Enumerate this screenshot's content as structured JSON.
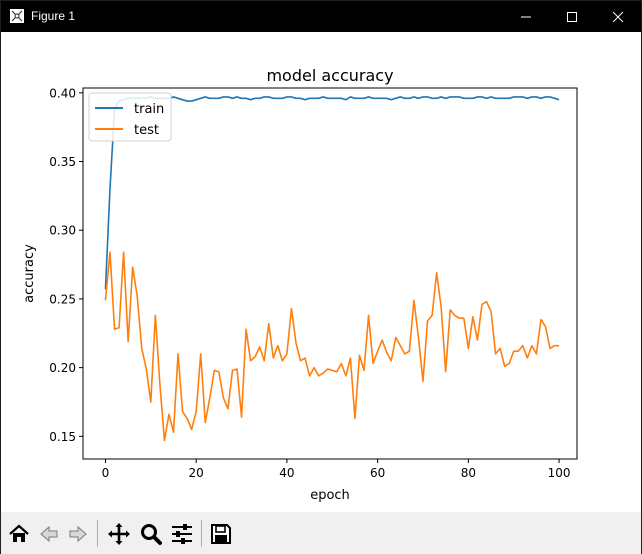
{
  "window": {
    "title": "Figure 1",
    "colors": {
      "titlebar": "#000000",
      "toolbar": "#f0f0f0"
    }
  },
  "toolbar": {
    "buttons": [
      {
        "name": "home-button",
        "icon": "home-icon"
      },
      {
        "name": "back-button",
        "icon": "back-arrow-icon"
      },
      {
        "name": "forward-button",
        "icon": "forward-arrow-icon"
      },
      {
        "name": "pan-button",
        "icon": "move-icon"
      },
      {
        "name": "zoom-button",
        "icon": "magnifier-icon"
      },
      {
        "name": "configure-subplots-button",
        "icon": "sliders-icon"
      },
      {
        "name": "save-button",
        "icon": "floppy-disk-icon"
      }
    ]
  },
  "chart_data": {
    "type": "line",
    "title": "model accuracy",
    "xlabel": "epoch",
    "ylabel": "accuracy",
    "xlim": [
      -4.95,
      103.95
    ],
    "ylim": [
      0.1335,
      0.4035
    ],
    "xticks": [
      0,
      20,
      40,
      60,
      80,
      100
    ],
    "xtick_labels": [
      "0",
      "20",
      "40",
      "60",
      "80",
      "100"
    ],
    "yticks": [
      0.15,
      0.2,
      0.25,
      0.3,
      0.35,
      0.4
    ],
    "ytick_labels": [
      "0.15",
      "0.20",
      "0.25",
      "0.30",
      "0.35",
      "0.40"
    ],
    "grid": false,
    "legend": {
      "placement": "top-left"
    },
    "series": [
      {
        "name": "train",
        "color": "#1f77b4",
        "values": [
          0.257,
          0.33,
          0.388,
          0.394,
          0.395,
          0.396,
          0.396,
          0.396,
          0.396,
          0.396,
          0.397,
          0.396,
          0.396,
          0.396,
          0.396,
          0.397,
          0.396,
          0.395,
          0.394,
          0.394,
          0.395,
          0.396,
          0.397,
          0.396,
          0.396,
          0.396,
          0.397,
          0.397,
          0.396,
          0.397,
          0.396,
          0.396,
          0.395,
          0.396,
          0.396,
          0.397,
          0.397,
          0.396,
          0.396,
          0.396,
          0.397,
          0.397,
          0.396,
          0.396,
          0.395,
          0.396,
          0.396,
          0.396,
          0.397,
          0.396,
          0.396,
          0.396,
          0.396,
          0.395,
          0.397,
          0.396,
          0.396,
          0.396,
          0.397,
          0.396,
          0.396,
          0.396,
          0.396,
          0.395,
          0.396,
          0.397,
          0.396,
          0.396,
          0.397,
          0.396,
          0.397,
          0.397,
          0.396,
          0.396,
          0.397,
          0.396,
          0.397,
          0.397,
          0.397,
          0.396,
          0.396,
          0.396,
          0.397,
          0.397,
          0.396,
          0.397,
          0.396,
          0.396,
          0.396,
          0.396,
          0.397,
          0.397,
          0.397,
          0.396,
          0.397,
          0.397,
          0.396,
          0.397,
          0.397,
          0.396,
          0.395
        ]
      },
      {
        "name": "test",
        "color": "#ff7f0e",
        "values": [
          0.249,
          0.284,
          0.228,
          0.229,
          0.284,
          0.219,
          0.273,
          0.252,
          0.214,
          0.199,
          0.175,
          0.238,
          0.188,
          0.147,
          0.166,
          0.153,
          0.21,
          0.168,
          0.163,
          0.155,
          0.168,
          0.21,
          0.16,
          0.178,
          0.198,
          0.197,
          0.178,
          0.17,
          0.198,
          0.199,
          0.164,
          0.228,
          0.205,
          0.208,
          0.215,
          0.205,
          0.232,
          0.207,
          0.216,
          0.205,
          0.21,
          0.243,
          0.218,
          0.205,
          0.207,
          0.194,
          0.2,
          0.194,
          0.196,
          0.199,
          0.198,
          0.197,
          0.203,
          0.194,
          0.207,
          0.163,
          0.209,
          0.198,
          0.238,
          0.203,
          0.212,
          0.22,
          0.211,
          0.205,
          0.222,
          0.216,
          0.21,
          0.212,
          0.249,
          0.222,
          0.19,
          0.234,
          0.238,
          0.269,
          0.244,
          0.197,
          0.242,
          0.238,
          0.236,
          0.236,
          0.214,
          0.237,
          0.22,
          0.246,
          0.248,
          0.241,
          0.21,
          0.214,
          0.201,
          0.203,
          0.212,
          0.212,
          0.216,
          0.207,
          0.216,
          0.21,
          0.235,
          0.23,
          0.214,
          0.216,
          0.216
        ]
      }
    ]
  }
}
